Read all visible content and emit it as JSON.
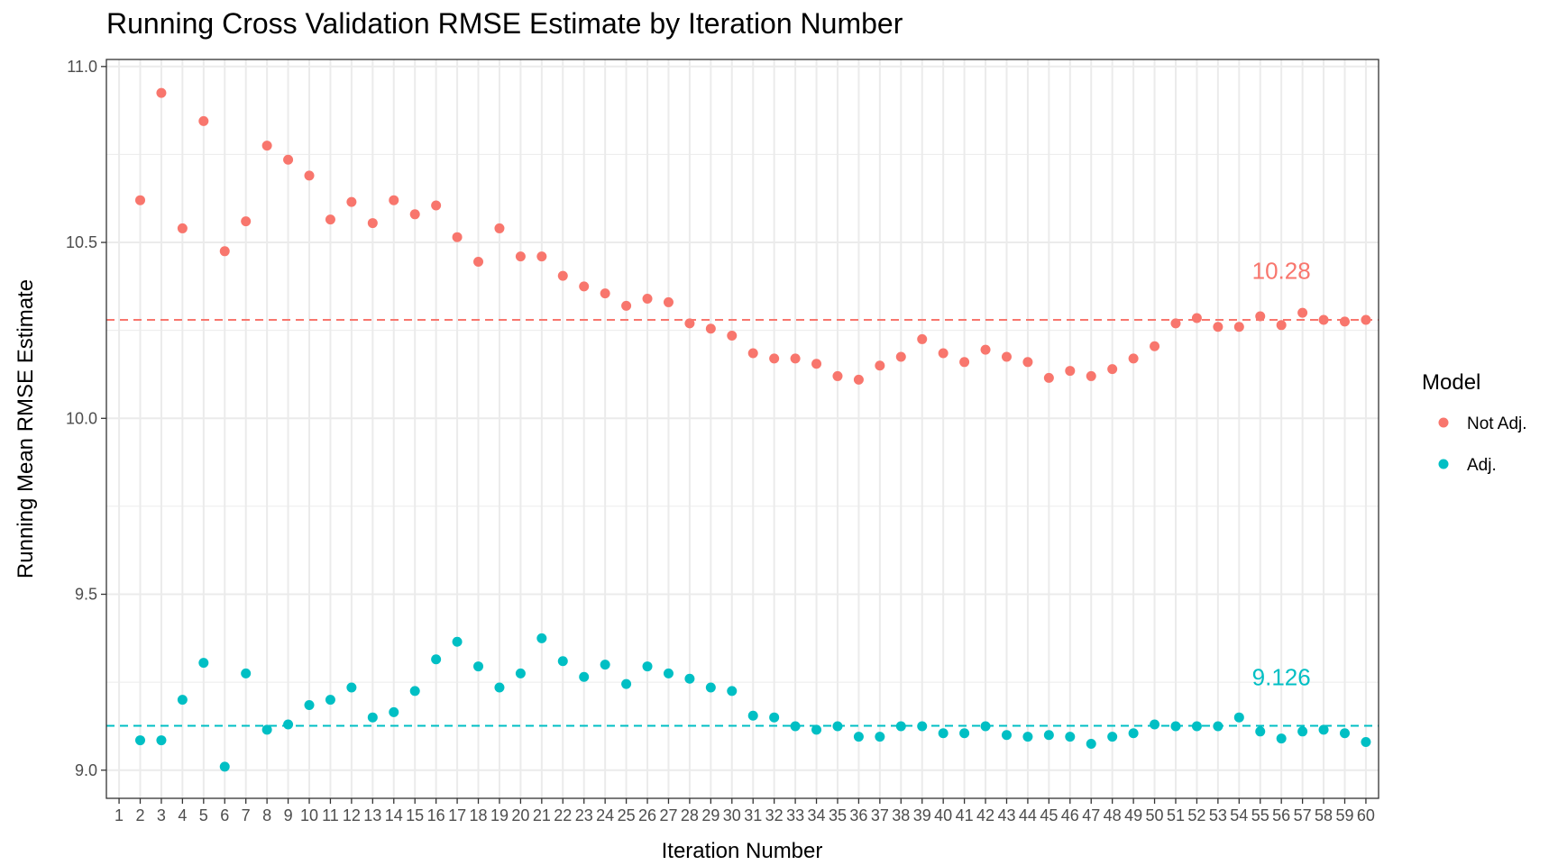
{
  "chart_data": {
    "type": "scatter",
    "title": "Running Cross Validation RMSE Estimate by Iteration Number",
    "xlabel": "Iteration Number",
    "ylabel": "Running Mean RMSE Estimate",
    "xlim": [
      0.4,
      60.6
    ],
    "ylim": [
      8.92,
      11.02
    ],
    "y_ticks": [
      "9.0",
      "9.5",
      "10.0",
      "10.5",
      "11.0"
    ],
    "y_tick_values": [
      9.0,
      9.5,
      10.0,
      10.5,
      11.0
    ],
    "x": [
      1,
      2,
      3,
      4,
      5,
      6,
      7,
      8,
      9,
      10,
      11,
      12,
      13,
      14,
      15,
      16,
      17,
      18,
      19,
      20,
      21,
      22,
      23,
      24,
      25,
      26,
      27,
      28,
      29,
      30,
      31,
      32,
      33,
      34,
      35,
      36,
      37,
      38,
      39,
      40,
      41,
      42,
      43,
      44,
      45,
      46,
      47,
      48,
      49,
      50,
      51,
      52,
      53,
      54,
      55,
      56,
      57,
      58,
      59,
      60
    ],
    "grid": true,
    "legend": {
      "title": "Model",
      "position": "right"
    },
    "series": [
      {
        "name": "Not Adj.",
        "color": "#F8766D",
        "x": [
          2,
          3,
          4,
          5,
          6,
          7,
          8,
          9,
          10,
          11,
          12,
          13,
          14,
          15,
          16,
          17,
          18,
          19,
          20,
          21,
          22,
          23,
          24,
          25,
          26,
          27,
          28,
          29,
          30,
          31,
          32,
          33,
          34,
          35,
          36,
          37,
          38,
          39,
          40,
          41,
          42,
          43,
          44,
          45,
          46,
          47,
          48,
          49,
          50,
          51,
          52,
          53,
          54,
          55,
          56,
          57,
          58,
          59,
          60
        ],
        "values": [
          10.62,
          10.925,
          10.54,
          10.845,
          10.475,
          10.56,
          10.775,
          10.735,
          10.69,
          10.565,
          10.615,
          10.555,
          10.62,
          10.58,
          10.605,
          10.515,
          10.445,
          10.54,
          10.46,
          10.46,
          10.405,
          10.375,
          10.355,
          10.32,
          10.34,
          10.33,
          10.27,
          10.255,
          10.235,
          10.185,
          10.17,
          10.17,
          10.155,
          10.12,
          10.11,
          10.15,
          10.175,
          10.225,
          10.185,
          10.16,
          10.195,
          10.175,
          10.16,
          10.115,
          10.135,
          10.12,
          10.14,
          10.17,
          10.205,
          10.27,
          10.285,
          10.26,
          10.26,
          10.29,
          10.265,
          10.3,
          10.28,
          10.275,
          10.28
        ]
      },
      {
        "name": "Adj.",
        "color": "#00BFC4",
        "x": [
          2,
          3,
          4,
          5,
          6,
          7,
          8,
          9,
          10,
          11,
          12,
          13,
          14,
          15,
          16,
          17,
          18,
          19,
          20,
          21,
          22,
          23,
          24,
          25,
          26,
          27,
          28,
          29,
          30,
          31,
          32,
          33,
          34,
          35,
          36,
          37,
          38,
          39,
          40,
          41,
          42,
          43,
          44,
          45,
          46,
          47,
          48,
          49,
          50,
          51,
          52,
          53,
          54,
          55,
          56,
          57,
          58,
          59,
          60
        ],
        "values": [
          9.085,
          9.085,
          9.2,
          9.305,
          9.01,
          9.275,
          9.115,
          9.13,
          9.185,
          9.2,
          9.235,
          9.15,
          9.165,
          9.225,
          9.315,
          9.365,
          9.295,
          9.235,
          9.275,
          9.375,
          9.31,
          9.265,
          9.3,
          9.245,
          9.295,
          9.275,
          9.26,
          9.235,
          9.225,
          9.155,
          9.15,
          9.125,
          9.115,
          9.125,
          9.095,
          9.095,
          9.125,
          9.125,
          9.105,
          9.105,
          9.125,
          9.1,
          9.095,
          9.1,
          9.095,
          9.075,
          9.095,
          9.105,
          9.13,
          9.125,
          9.125,
          9.125,
          9.15,
          9.11,
          9.09,
          9.11,
          9.115,
          9.105,
          9.08
        ]
      }
    ],
    "reference_lines": [
      {
        "series": "Not Adj.",
        "value": 10.28,
        "label": "10.28",
        "color": "#F8766D",
        "label_x": 56,
        "label_y": 10.42,
        "style": "dashed"
      },
      {
        "series": "Adj.",
        "value": 9.126,
        "label": "9.126",
        "color": "#00BFC4",
        "label_x": 56,
        "label_y": 9.265,
        "style": "dashed"
      }
    ]
  }
}
